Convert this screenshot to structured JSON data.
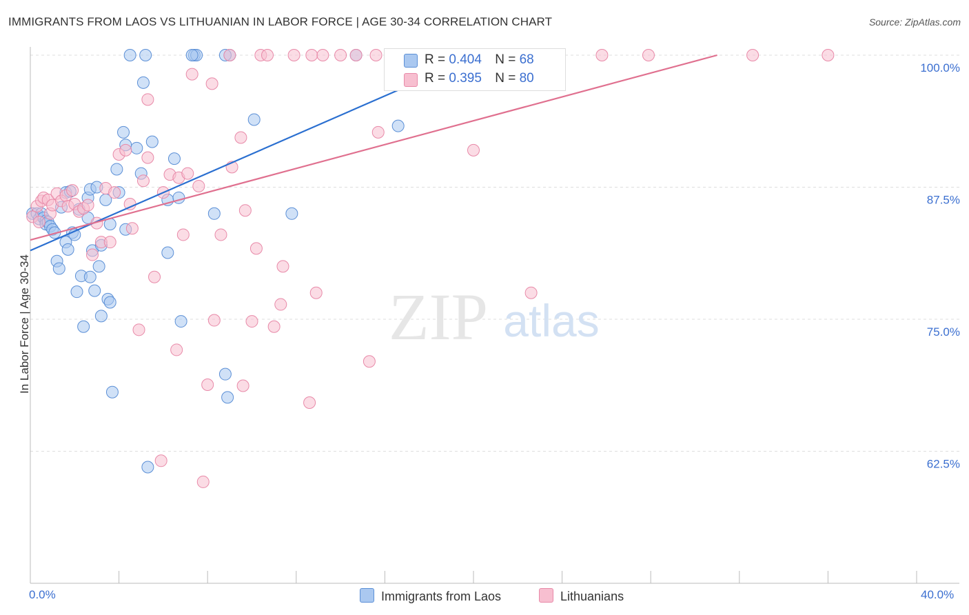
{
  "header": {
    "title": "IMMIGRANTS FROM LAOS VS LITHUANIAN IN LABOR FORCE | AGE 30-34 CORRELATION CHART",
    "source": "Source: ZipAtlas.com"
  },
  "watermark": {
    "zip": "ZIP",
    "atlas": "atlas"
  },
  "legend": {
    "rows": [
      {
        "r_label": "R =",
        "r_value": "0.404",
        "n_label": "N =",
        "n_value": "68"
      },
      {
        "r_label": "R =",
        "r_value": "0.395",
        "n_label": "N =",
        "n_value": "80"
      }
    ],
    "bottom": [
      {
        "label": "Immigrants from Laos"
      },
      {
        "label": "Lithuanians"
      }
    ]
  },
  "colors": {
    "laos_fill": "#aac8f0",
    "laos_stroke": "#5b8fd6",
    "laos_line": "#2a6fd0",
    "lith_fill": "#f7bfd0",
    "lith_stroke": "#e889a8",
    "lith_line": "#e0708f",
    "tick_text": "#3b6fd0",
    "grid": "#dddddd"
  },
  "chart_data": {
    "type": "scatter",
    "title": "IMMIGRANTS FROM LAOS VS LITHUANIAN IN LABOR FORCE | AGE 30-34 CORRELATION CHART",
    "xlabel": "",
    "ylabel": "In Labor Force | Age 30-34",
    "xlim": [
      0,
      40
    ],
    "ylim": [
      50,
      100
    ],
    "x_tick_labels": [
      "0.0%",
      "40.0%"
    ],
    "y_ticks": [
      62.5,
      75.0,
      87.5,
      100.0
    ],
    "y_tick_labels": [
      "62.5%",
      "75.0%",
      "87.5%",
      "100.0%"
    ],
    "grid": true,
    "legend_position": "top-center",
    "series": [
      {
        "name": "Immigrants from Laos",
        "r": 0.404,
        "n": 68,
        "trend": {
          "x": [
            0,
            20
          ],
          "y": [
            81.5,
            99.8
          ]
        },
        "points": [
          [
            0.1,
            85.0
          ],
          [
            0.3,
            85.0
          ],
          [
            0.4,
            84.5
          ],
          [
            0.5,
            85.0
          ],
          [
            0.6,
            84.6
          ],
          [
            0.7,
            84.3
          ],
          [
            0.7,
            84.0
          ],
          [
            0.8,
            84.2
          ],
          [
            0.9,
            83.8
          ],
          [
            1.0,
            83.5
          ],
          [
            1.1,
            83.2
          ],
          [
            1.2,
            80.5
          ],
          [
            1.3,
            79.8
          ],
          [
            1.4,
            85.6
          ],
          [
            1.6,
            87.0
          ],
          [
            1.6,
            82.3
          ],
          [
            1.7,
            81.6
          ],
          [
            1.8,
            87.1
          ],
          [
            1.9,
            83.2
          ],
          [
            2.0,
            83.0
          ],
          [
            2.1,
            77.6
          ],
          [
            2.2,
            85.4
          ],
          [
            2.3,
            79.1
          ],
          [
            2.4,
            74.3
          ],
          [
            2.6,
            84.6
          ],
          [
            2.6,
            86.5
          ],
          [
            2.7,
            79.0
          ],
          [
            2.7,
            87.3
          ],
          [
            2.8,
            81.5
          ],
          [
            2.9,
            77.7
          ],
          [
            3.0,
            87.5
          ],
          [
            3.1,
            80.0
          ],
          [
            3.2,
            82.0
          ],
          [
            3.2,
            75.3
          ],
          [
            3.4,
            86.3
          ],
          [
            3.5,
            76.9
          ],
          [
            3.6,
            76.6
          ],
          [
            3.6,
            84.0
          ],
          [
            3.7,
            68.1
          ],
          [
            3.9,
            89.2
          ],
          [
            4.0,
            87.0
          ],
          [
            4.2,
            92.7
          ],
          [
            4.3,
            91.5
          ],
          [
            4.3,
            83.5
          ],
          [
            4.8,
            91.2
          ],
          [
            5.0,
            88.8
          ],
          [
            5.1,
            97.4
          ],
          [
            5.3,
            61.0
          ],
          [
            5.5,
            91.8
          ],
          [
            6.2,
            81.3
          ],
          [
            6.2,
            86.3
          ],
          [
            6.5,
            90.2
          ],
          [
            6.7,
            86.5
          ],
          [
            6.8,
            74.8
          ],
          [
            7.4,
            100
          ],
          [
            7.5,
            100
          ],
          [
            8.3,
            85.0
          ],
          [
            8.8,
            69.8
          ],
          [
            8.9,
            67.6
          ],
          [
            9.0,
            100
          ],
          [
            10.1,
            93.9
          ],
          [
            11.8,
            85.0
          ],
          [
            14.7,
            100
          ],
          [
            16.6,
            93.3
          ],
          [
            4.5,
            100
          ],
          [
            5.2,
            100
          ],
          [
            7.3,
            100
          ],
          [
            8.8,
            100
          ]
        ]
      },
      {
        "name": "Lithuanians",
        "r": 0.395,
        "n": 80,
        "trend": {
          "x": [
            0,
            31
          ],
          "y": [
            82.5,
            100
          ]
        },
        "points": [
          [
            0.1,
            84.7
          ],
          [
            0.3,
            85.7
          ],
          [
            0.4,
            84.2
          ],
          [
            0.5,
            86.2
          ],
          [
            0.6,
            86.5
          ],
          [
            0.8,
            86.3
          ],
          [
            0.9,
            85.0
          ],
          [
            1.0,
            85.8
          ],
          [
            1.2,
            86.9
          ],
          [
            1.4,
            86.2
          ],
          [
            1.6,
            86.7
          ],
          [
            1.7,
            85.7
          ],
          [
            1.9,
            87.2
          ],
          [
            2.0,
            85.9
          ],
          [
            2.2,
            85.2
          ],
          [
            2.4,
            85.5
          ],
          [
            2.6,
            85.8
          ],
          [
            2.8,
            81.1
          ],
          [
            3.0,
            84.1
          ],
          [
            3.2,
            82.3
          ],
          [
            3.4,
            87.4
          ],
          [
            3.6,
            82.3
          ],
          [
            3.8,
            87.0
          ],
          [
            4.0,
            90.6
          ],
          [
            4.3,
            91.0
          ],
          [
            4.5,
            85.9
          ],
          [
            4.6,
            83.6
          ],
          [
            4.9,
            74.0
          ],
          [
            5.1,
            88.1
          ],
          [
            5.3,
            90.3
          ],
          [
            5.3,
            95.8
          ],
          [
            5.6,
            79.0
          ],
          [
            5.9,
            61.6
          ],
          [
            6.0,
            87.0
          ],
          [
            6.3,
            88.7
          ],
          [
            6.6,
            72.1
          ],
          [
            6.7,
            88.4
          ],
          [
            6.9,
            83.0
          ],
          [
            7.1,
            88.8
          ],
          [
            7.3,
            98.2
          ],
          [
            7.6,
            87.6
          ],
          [
            7.8,
            59.6
          ],
          [
            8.0,
            68.8
          ],
          [
            8.2,
            97.3
          ],
          [
            8.3,
            74.9
          ],
          [
            8.6,
            83.0
          ],
          [
            9.0,
            100
          ],
          [
            9.1,
            89.4
          ],
          [
            9.5,
            92.2
          ],
          [
            9.6,
            68.7
          ],
          [
            9.7,
            85.3
          ],
          [
            10.0,
            74.8
          ],
          [
            10.2,
            81.7
          ],
          [
            10.4,
            100
          ],
          [
            10.7,
            100
          ],
          [
            11.0,
            74.3
          ],
          [
            11.3,
            76.4
          ],
          [
            11.4,
            80.0
          ],
          [
            11.9,
            100
          ],
          [
            12.6,
            67.1
          ],
          [
            12.9,
            77.5
          ],
          [
            12.7,
            100
          ],
          [
            13.2,
            100
          ],
          [
            14.0,
            100
          ],
          [
            14.7,
            100
          ],
          [
            15.3,
            71.0
          ],
          [
            15.6,
            100
          ],
          [
            15.7,
            92.7
          ],
          [
            16.5,
            100
          ],
          [
            17.5,
            100
          ],
          [
            18.0,
            100
          ],
          [
            20.0,
            100
          ],
          [
            20.0,
            91.0
          ],
          [
            21.6,
            100
          ],
          [
            22.6,
            77.5
          ],
          [
            23.8,
            100
          ],
          [
            25.8,
            100
          ],
          [
            27.9,
            100
          ],
          [
            32.6,
            100
          ],
          [
            36.0,
            100
          ]
        ]
      }
    ]
  }
}
